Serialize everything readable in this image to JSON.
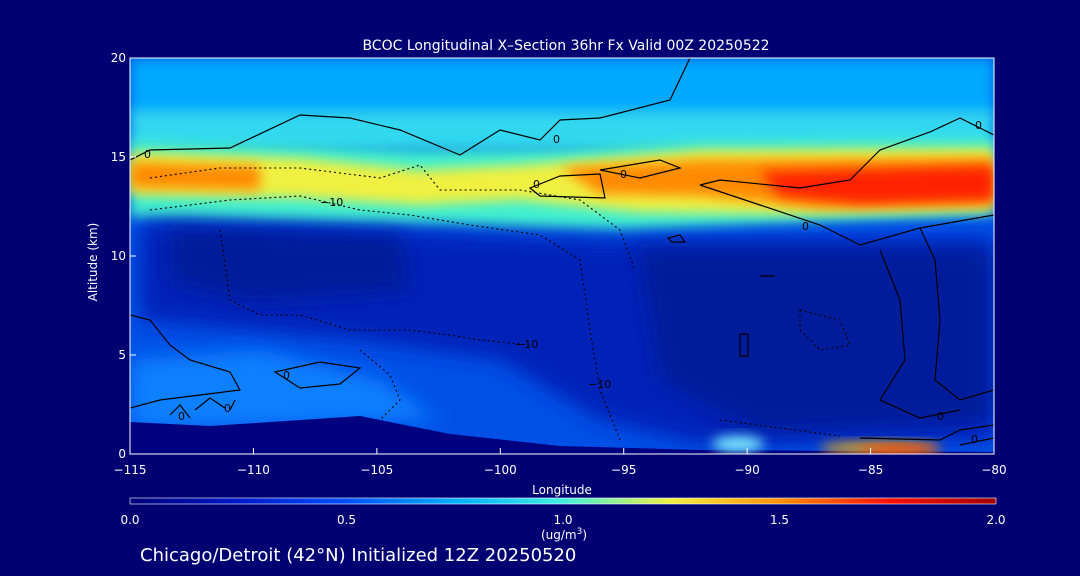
{
  "chart_data": {
    "type": "heatmap",
    "title": "BCOC Longitudinal X–Section 36hr  Fx Valid 00Z 20250522",
    "xlabel": "Longitude",
    "ylabel": "Altitude (km)",
    "xlim": [
      -115,
      -80
    ],
    "ylim": [
      0,
      20
    ],
    "xticks": [
      -115,
      -110,
      -105,
      -100,
      -95,
      -90,
      -85,
      -80
    ],
    "xtick_labels": [
      "−115",
      "−110",
      "−105",
      "−100",
      "−95",
      "−90",
      "−85",
      "−80"
    ],
    "yticks": [
      0,
      5,
      10,
      15,
      20
    ],
    "ytick_labels": [
      "0",
      "5",
      "10",
      "15",
      "20"
    ],
    "colorbar": {
      "min": 0.0,
      "max": 2.0,
      "ticks": [
        0.0,
        0.5,
        1.0,
        1.5,
        2.0
      ],
      "tick_labels": [
        "0.0",
        "0.5",
        "1.0",
        "1.5",
        "2.0"
      ],
      "unit_label": "(ug/m",
      "unit_sup": "3",
      "unit_end": ")",
      "colormap": [
        "#00007a",
        "#0018c8",
        "#0050ff",
        "#00b0ff",
        "#40f0e0",
        "#f0f040",
        "#ff9000",
        "#ff1000",
        "#a00000"
      ]
    },
    "contour_labels": [
      "0",
      "0",
      "0",
      "0",
      "0",
      "0",
      "−10",
      "−10",
      "−10",
      "0",
      "0",
      "0",
      "0",
      "0"
    ],
    "fields": {
      "background_bc": 0.4,
      "upper_layer": [
        {
          "lon": -115,
          "alt": 14.2,
          "value": 1.55
        },
        {
          "lon": -111,
          "alt": 14.0,
          "value": 1.45
        },
        {
          "lon": -104,
          "alt": 13.8,
          "value": 1.05
        },
        {
          "lon": -98,
          "alt": 13.8,
          "value": 1.3
        },
        {
          "lon": -95,
          "alt": 13.6,
          "value": 1.55
        },
        {
          "lon": -86,
          "alt": 13.2,
          "value": 1.75
        },
        {
          "lon": -80,
          "alt": 13.4,
          "value": 1.8
        }
      ],
      "surface_hotspots": [
        {
          "lon": -90.5,
          "alt": 0.4,
          "value": 1.1
        },
        {
          "lon": -84,
          "alt": 0.3,
          "value": 1.6
        }
      ]
    }
  },
  "footer": {
    "text": "Chicago/Detroit (42°N) Initialized 12Z 20250520"
  }
}
